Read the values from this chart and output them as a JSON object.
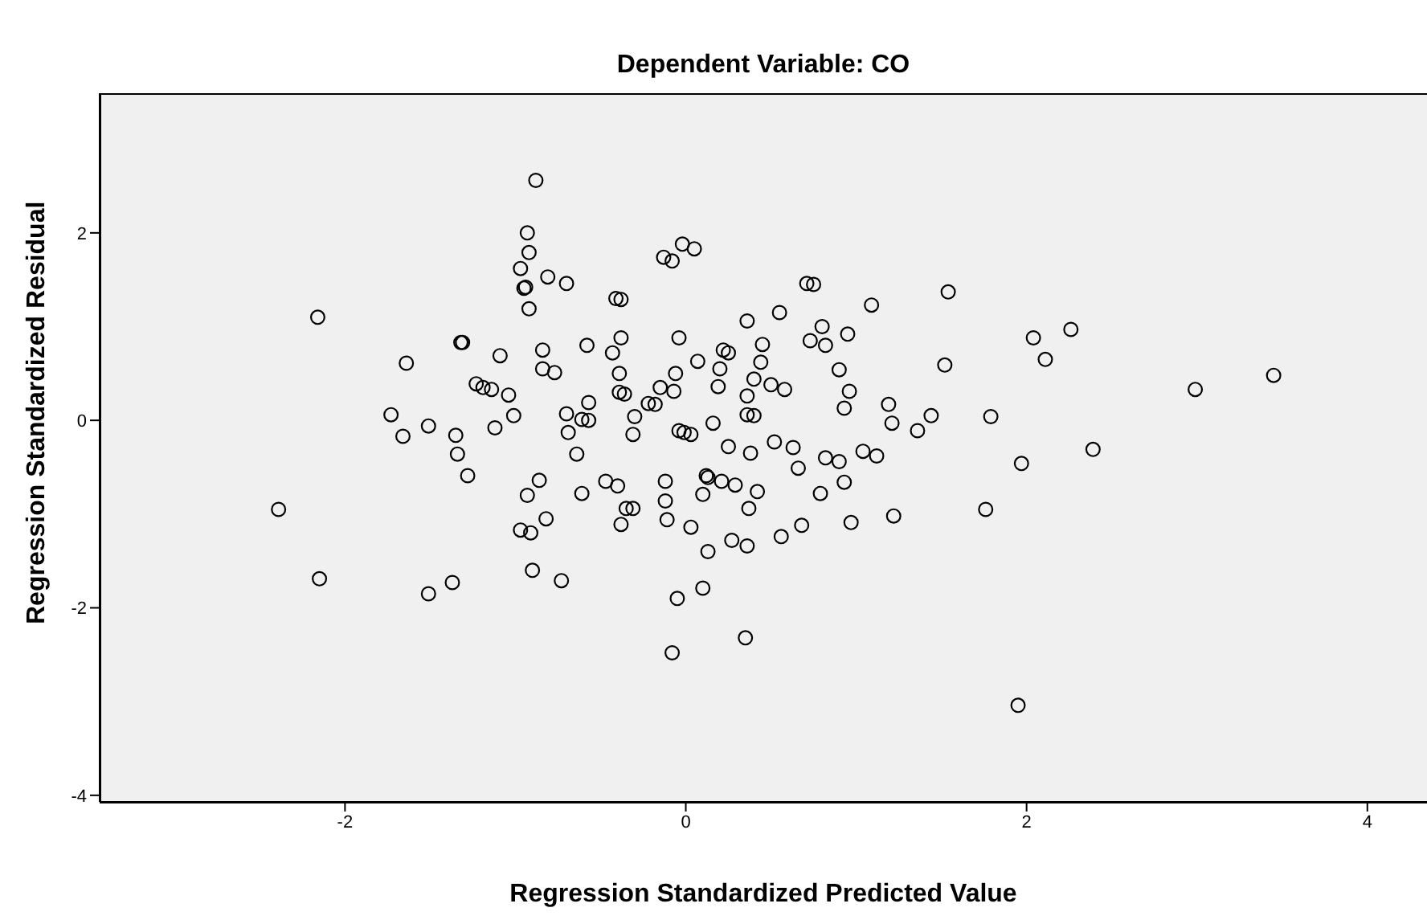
{
  "chart_data": {
    "type": "scatter",
    "title": "Dependent Variable: CO",
    "xlabel": "Regression Standardized Predicted Value",
    "ylabel": "Regression Standardized Residual",
    "xlim": [
      -3.44,
      4.35
    ],
    "ylim": [
      -4.07,
      3.49
    ],
    "xticks": [
      -2,
      0,
      2,
      4
    ],
    "yticks": [
      -4,
      -2,
      0,
      2
    ],
    "grid": false,
    "legend": false,
    "marker": "circle",
    "series": [
      {
        "color": "#000000",
        "x": [
          -0.88,
          -0.93,
          -0.92,
          -0.97,
          -0.95,
          -0.94,
          -0.81,
          -0.7,
          -0.92,
          -2.16,
          -0.13,
          -0.08,
          -0.02,
          0.05,
          -0.41,
          -0.38,
          0.71,
          0.75,
          1.54,
          1.09,
          0.36,
          0.55,
          0.8,
          -1.32,
          -1.31,
          -1.64,
          -1.09,
          -0.58,
          -0.38,
          -0.04,
          -0.43,
          -0.84,
          -0.84,
          -0.77,
          -0.39,
          0.22,
          0.25,
          0.07,
          0.45,
          0.73,
          0.82,
          0.95,
          2.04,
          2.26,
          2.11,
          1.52,
          0.9,
          0.2,
          0.44,
          -0.06,
          -1.23,
          -1.19,
          -1.14,
          -1.04,
          -0.15,
          -0.07,
          -0.39,
          -0.36,
          0.19,
          0.4,
          0.5,
          0.58,
          0.96,
          2.99,
          3.45,
          -0.57,
          -0.7,
          -0.61,
          -0.57,
          -0.22,
          -0.18,
          -0.3,
          -1.01,
          -1.73,
          0.36,
          0.36,
          0.4,
          1.19,
          0.93,
          1.44,
          1.79,
          1.21,
          1.36,
          -1.51,
          -1.66,
          -1.35,
          -1.12,
          -0.69,
          -0.31,
          -0.04,
          -0.01,
          0.03,
          0.16,
          -1.34,
          -0.64,
          0.25,
          0.38,
          0.52,
          0.63,
          0.66,
          0.82,
          0.9,
          1.04,
          1.12,
          1.97,
          2.39,
          -1.28,
          -0.86,
          -0.47,
          -0.4,
          -0.93,
          -0.61,
          -0.12,
          0.12,
          0.13,
          0.21,
          0.29,
          0.42,
          0.1,
          0.93,
          0.79,
          -0.12,
          -2.39,
          -0.35,
          -0.31,
          -0.82,
          -0.97,
          -0.91,
          -0.38,
          -0.11,
          0.03,
          0.37,
          0.68,
          0.97,
          1.22,
          1.76,
          0.13,
          0.27,
          0.36,
          0.56,
          -2.15,
          -1.51,
          -1.37,
          -0.9,
          -0.73,
          -0.05,
          0.1,
          0.35,
          -0.08,
          1.95
        ],
        "values": [
          2.56,
          2.0,
          1.79,
          1.62,
          1.41,
          1.42,
          1.53,
          1.46,
          1.19,
          1.1,
          1.74,
          1.7,
          1.88,
          1.83,
          1.3,
          1.29,
          1.46,
          1.45,
          1.37,
          1.23,
          1.06,
          1.15,
          1.0,
          0.83,
          0.83,
          0.61,
          0.69,
          0.8,
          0.88,
          0.88,
          0.72,
          0.75,
          0.55,
          0.51,
          0.5,
          0.75,
          0.72,
          0.63,
          0.81,
          0.85,
          0.8,
          0.92,
          0.88,
          0.97,
          0.65,
          0.59,
          0.54,
          0.55,
          0.62,
          0.5,
          0.39,
          0.35,
          0.33,
          0.27,
          0.35,
          0.31,
          0.3,
          0.28,
          0.36,
          0.44,
          0.38,
          0.33,
          0.31,
          0.33,
          0.48,
          0.19,
          0.07,
          0.01,
          0.0,
          0.18,
          0.17,
          0.04,
          0.05,
          0.06,
          0.26,
          0.06,
          0.05,
          0.17,
          0.13,
          0.05,
          0.04,
          -0.03,
          -0.11,
          -0.06,
          -0.17,
          -0.16,
          -0.08,
          -0.13,
          -0.15,
          -0.11,
          -0.13,
          -0.15,
          -0.03,
          -0.36,
          -0.36,
          -0.28,
          -0.35,
          -0.23,
          -0.29,
          -0.51,
          -0.4,
          -0.44,
          -0.33,
          -0.38,
          -0.46,
          -0.31,
          -0.59,
          -0.64,
          -0.65,
          -0.7,
          -0.8,
          -0.78,
          -0.65,
          -0.59,
          -0.61,
          -0.65,
          -0.69,
          -0.76,
          -0.79,
          -0.66,
          -0.78,
          -0.86,
          -0.95,
          -0.94,
          -0.94,
          -1.05,
          -1.17,
          -1.2,
          -1.11,
          -1.06,
          -1.14,
          -0.94,
          -1.12,
          -1.09,
          -1.02,
          -0.95,
          -1.4,
          -1.28,
          -1.34,
          -1.24,
          -1.69,
          -1.85,
          -1.73,
          -1.6,
          -1.71,
          -1.9,
          -1.79,
          -2.32,
          -2.48,
          -3.04
        ]
      }
    ]
  }
}
